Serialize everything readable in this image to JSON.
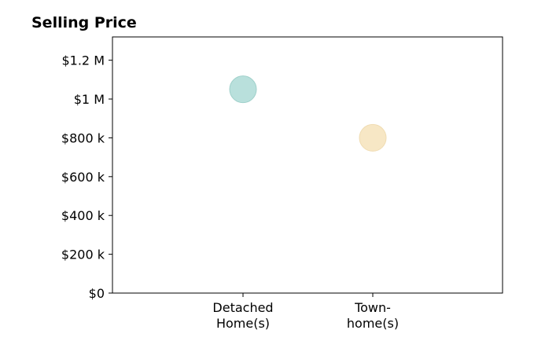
{
  "chart_data": {
    "type": "scatter",
    "title": "Selling Price",
    "xlabel": "",
    "ylabel": "",
    "categories": [
      [
        "Detached",
        "Home(s)"
      ],
      [
        "Town-",
        "home(s)"
      ]
    ],
    "points": [
      {
        "category": 0,
        "value": 1050000,
        "color": "#b9e0dc",
        "stroke": "#9fd0ca"
      },
      {
        "category": 1,
        "value": 800000,
        "color": "#f7e7c5",
        "stroke": "#f0dcb2"
      }
    ],
    "ylim": [
      0,
      1320000
    ],
    "yticks": [
      0,
      200000,
      400000,
      600000,
      800000,
      1000000,
      1200000
    ],
    "ytick_labels": [
      "$0",
      "$200 k",
      "$400 k",
      "$600 k",
      "$800 k",
      "$1 M",
      "$1.2 M"
    ],
    "grid": false,
    "legend": "none"
  }
}
